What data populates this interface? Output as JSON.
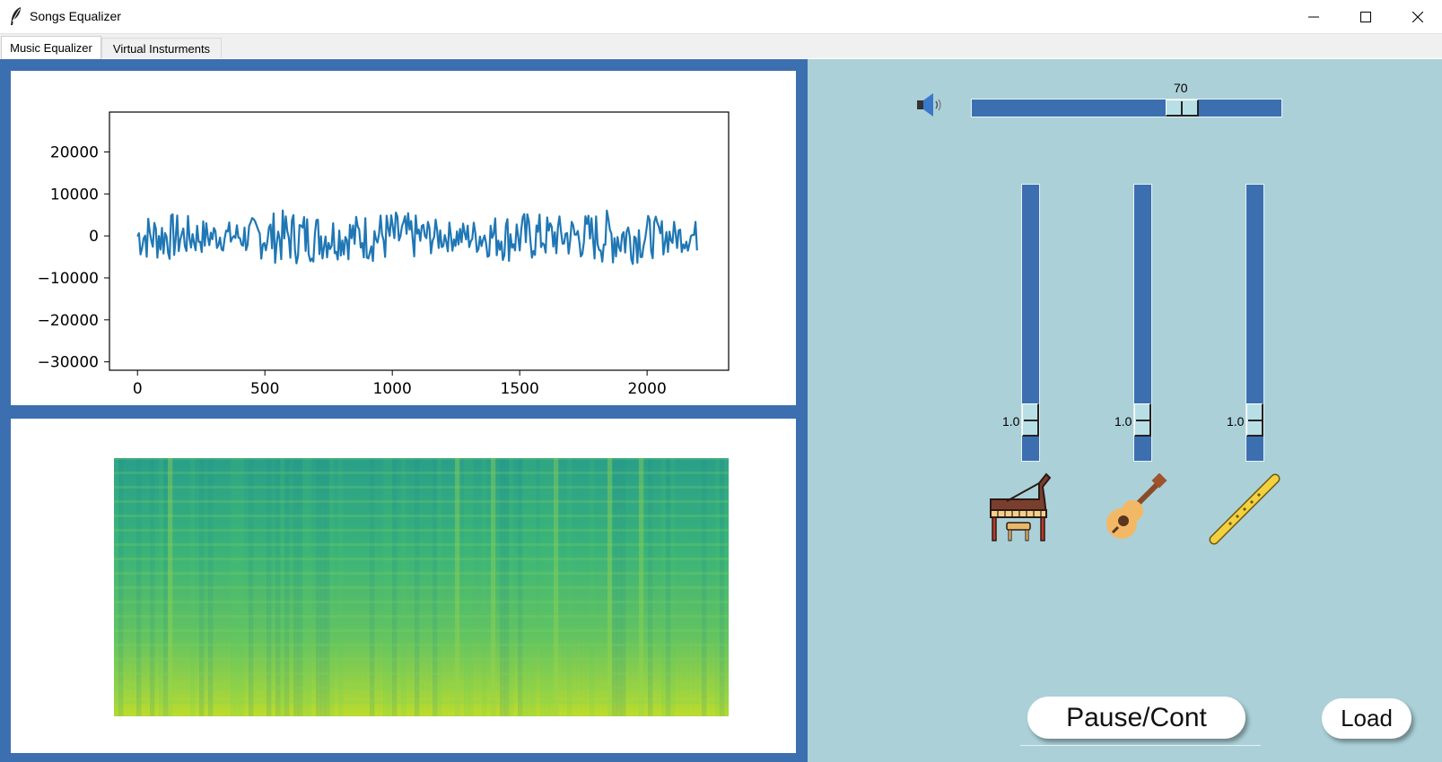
{
  "window": {
    "title": "Songs Equalizer",
    "controls": {
      "minimize": "minimize-icon",
      "maximize": "maximize-icon",
      "close": "close-icon"
    }
  },
  "tabs": [
    {
      "label": "Music Equalizer",
      "active": true
    },
    {
      "label": "Virtual Insturments",
      "active": false
    }
  ],
  "waveform": {
    "chart_data": {
      "type": "line",
      "title": "",
      "xlabel": "",
      "ylabel": "",
      "x_ticks": [
        "0",
        "500",
        "1000",
        "1500",
        "2000"
      ],
      "y_ticks": [
        "20000",
        "10000",
        "0",
        "−10000",
        "−20000",
        "−30000"
      ],
      "xlim": [
        -110,
        2320
      ],
      "ylim": [
        -32000,
        29500
      ],
      "x_range": [
        0,
        2200
      ],
      "amplitude_range": [
        -7500,
        6800
      ],
      "series_color": "#1f77b4",
      "grid": false
    }
  },
  "spectrogram": {
    "chart_data": {
      "type": "heatmap",
      "colormap": "viridis",
      "dominant_colors": [
        "#21918c",
        "#2ab07f",
        "#5ec962",
        "#addc30",
        "#c8e020"
      ],
      "axes_visible": false
    }
  },
  "volume": {
    "icon": "speaker-icon",
    "value": "70",
    "min": 0,
    "max": 100
  },
  "instrument_sliders": [
    {
      "name": "piano",
      "icon": "piano-icon",
      "value": "1.0",
      "level_fraction": 0.2
    },
    {
      "name": "guitar",
      "icon": "guitar-icon",
      "value": "1.0",
      "level_fraction": 0.2
    },
    {
      "name": "flute",
      "icon": "flute-icon",
      "value": "1.0",
      "level_fraction": 0.2
    }
  ],
  "buttons": {
    "pause": "Pause/Cont",
    "load": "Load"
  },
  "colors": {
    "frame_blue": "#3c6fb0",
    "panel_bg": "#abd0d8",
    "thumb": "#b8dfe6"
  }
}
